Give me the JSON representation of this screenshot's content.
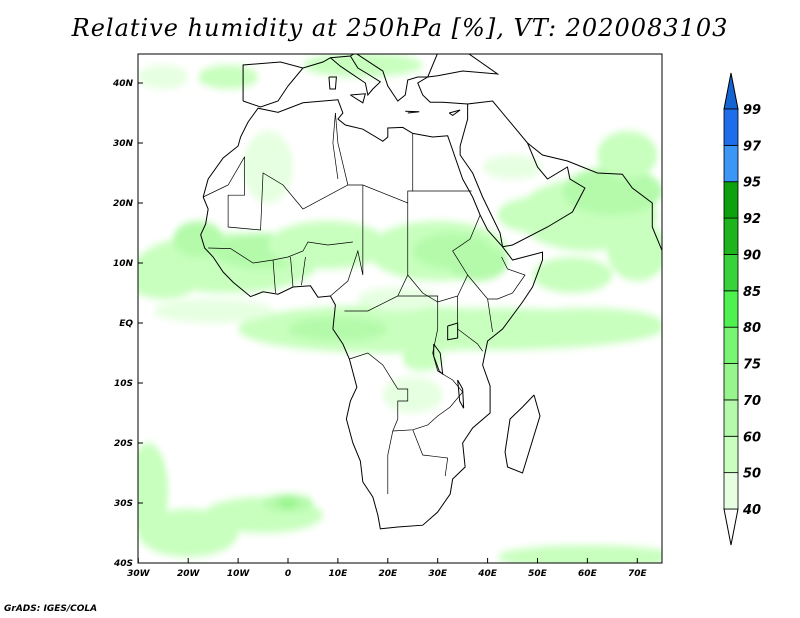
{
  "title": "Relative humidity at 250hPa [%], VT: 2020083103",
  "footer": "GrADS: IGES/COLA",
  "map": {
    "lon_range": [
      -30,
      75
    ],
    "lat_range": [
      -40,
      44.8
    ],
    "lat_labels": [
      {
        "lat": 40,
        "text": "40N"
      },
      {
        "lat": 30,
        "text": "30N"
      },
      {
        "lat": 20,
        "text": "20N"
      },
      {
        "lat": 10,
        "text": "10N"
      },
      {
        "lat": 0,
        "text": "EQ"
      },
      {
        "lat": -10,
        "text": "10S"
      },
      {
        "lat": -20,
        "text": "20S"
      },
      {
        "lat": -30,
        "text": "30S"
      },
      {
        "lat": -40,
        "text": "40S"
      }
    ],
    "lon_labels": [
      {
        "lon": -30,
        "text": "30W"
      },
      {
        "lon": -20,
        "text": "20W"
      },
      {
        "lon": -10,
        "text": "10W"
      },
      {
        "lon": 0,
        "text": "0"
      },
      {
        "lon": 10,
        "text": "10E"
      },
      {
        "lon": 20,
        "text": "20E"
      },
      {
        "lon": 30,
        "text": "30E"
      },
      {
        "lon": 40,
        "text": "40E"
      },
      {
        "lon": 50,
        "text": "50E"
      },
      {
        "lon": 60,
        "text": "60E"
      },
      {
        "lon": 70,
        "text": "70E"
      }
    ]
  },
  "colorbar": {
    "levels": [
      "40",
      "50",
      "60",
      "70",
      "75",
      "80",
      "85",
      "90",
      "92",
      "95",
      "97",
      "99"
    ],
    "colors": [
      "#e6ffe1",
      "#c8ffbe",
      "#b4faaa",
      "#96f58c",
      "#78f573",
      "#50f050",
      "#37d23c",
      "#1eb41e",
      "#0fa00f",
      "#3c96f5",
      "#1e6eeb"
    ],
    "over_color": "#1464d2",
    "under_color": "#ffffff"
  }
}
